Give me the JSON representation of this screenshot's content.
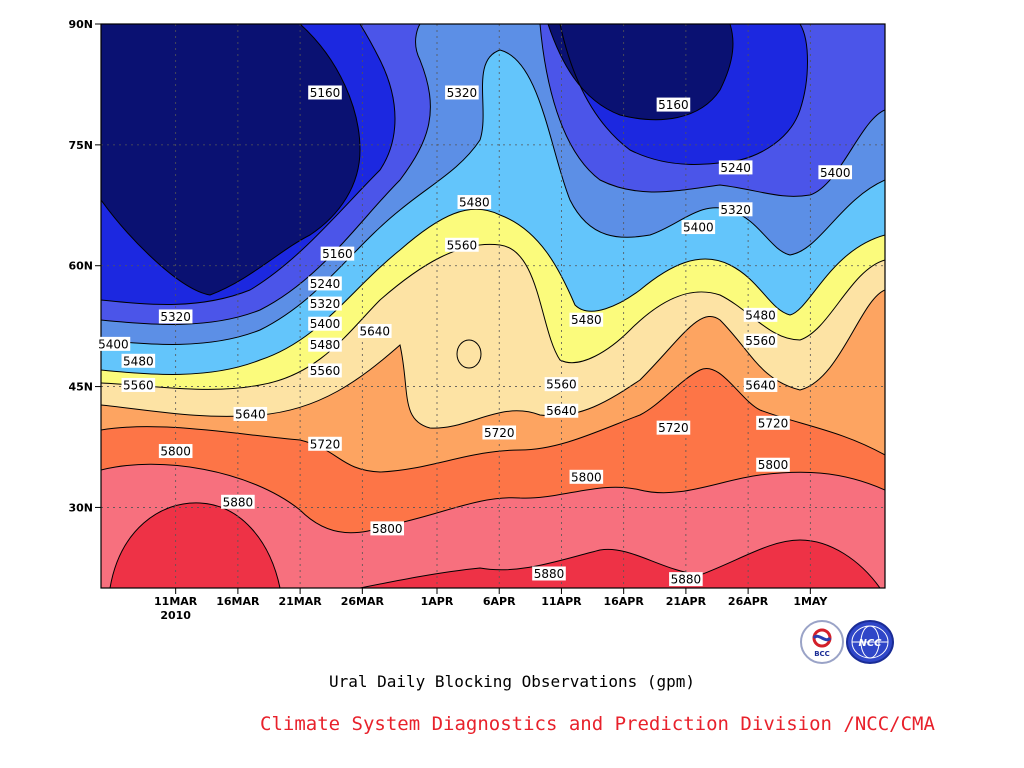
{
  "chart_data": {
    "type": "heatmap",
    "title": "Ural Daily Blocking Observations (gpm)",
    "credit": "Climate System Diagnostics and Prediction Division /NCC/CMA",
    "x_start_date": "2010-03-05",
    "x_end_date": "2010-05-07",
    "x_tick_labels": [
      "11MAR",
      "16MAR",
      "21MAR",
      "26MAR",
      "1APR",
      "6APR",
      "11APR",
      "16APR",
      "21APR",
      "26APR",
      "1MAY"
    ],
    "x_tick_dates": [
      "2010-03-11",
      "2010-03-16",
      "2010-03-21",
      "2010-03-26",
      "2010-04-01",
      "2010-04-06",
      "2010-04-11",
      "2010-04-16",
      "2010-04-21",
      "2010-04-26",
      "2010-05-01"
    ],
    "x_sublabel": "2010",
    "y_ticks": [
      30,
      45,
      60,
      75,
      90
    ],
    "y_tick_labels": [
      "30N",
      "45N",
      "60N",
      "75N",
      "90N"
    ],
    "ylim": [
      20,
      90
    ],
    "grid": true,
    "levels": [
      5160,
      5240,
      5320,
      5400,
      5480,
      5560,
      5640,
      5720,
      5800,
      5880
    ],
    "colors": [
      "#0a1172",
      "#1c28e0",
      "#4b55e9",
      "#5c8fe6",
      "#63c5fb",
      "#fbfb7c",
      "#fde3a4",
      "#fda461",
      "#fd7547",
      "#f7707e",
      "#ee3246"
    ],
    "contour_labels": [
      {
        "x": "2010-03-23",
        "y": 81.5,
        "value": "5160"
      },
      {
        "x": "2010-04-03",
        "y": 81.5,
        "value": "5320"
      },
      {
        "x": "2010-04-20",
        "y": 80.0,
        "value": "5160"
      },
      {
        "x": "2010-04-25",
        "y": 72.2,
        "value": "5240"
      },
      {
        "x": "2010-05-03",
        "y": 71.6,
        "value": "5400"
      },
      {
        "x": "2010-04-25",
        "y": 67.0,
        "value": "5320"
      },
      {
        "x": "2010-04-22",
        "y": 64.8,
        "value": "5400"
      },
      {
        "x": "2010-04-04",
        "y": 67.9,
        "value": "5480"
      },
      {
        "x": "2010-04-03",
        "y": 62.6,
        "value": "5560"
      },
      {
        "x": "2010-03-24",
        "y": 61.5,
        "value": "5160"
      },
      {
        "x": "2010-03-23",
        "y": 57.8,
        "value": "5240"
      },
      {
        "x": "2010-03-23",
        "y": 55.3,
        "value": "5320"
      },
      {
        "x": "2010-03-23",
        "y": 52.8,
        "value": "5400"
      },
      {
        "x": "2010-03-23",
        "y": 50.2,
        "value": "5480"
      },
      {
        "x": "2010-03-23",
        "y": 47.0,
        "value": "5560"
      },
      {
        "x": "2010-03-27",
        "y": 51.9,
        "value": "5640"
      },
      {
        "x": "2010-03-11",
        "y": 53.7,
        "value": "5320"
      },
      {
        "x": "2010-03-06",
        "y": 50.3,
        "value": "5400"
      },
      {
        "x": "2010-03-08",
        "y": 48.2,
        "value": "5480"
      },
      {
        "x": "2010-03-08",
        "y": 45.2,
        "value": "5560"
      },
      {
        "x": "2010-03-17",
        "y": 41.6,
        "value": "5640"
      },
      {
        "x": "2010-03-23",
        "y": 37.9,
        "value": "5720"
      },
      {
        "x": "2010-03-11",
        "y": 37.0,
        "value": "5800"
      },
      {
        "x": "2010-03-16",
        "y": 30.7,
        "value": "5880"
      },
      {
        "x": "2010-03-28",
        "y": 27.4,
        "value": "5800"
      },
      {
        "x": "2010-04-13",
        "y": 53.3,
        "value": "5480"
      },
      {
        "x": "2010-04-11",
        "y": 45.3,
        "value": "5560"
      },
      {
        "x": "2010-04-11",
        "y": 42.0,
        "value": "5640"
      },
      {
        "x": "2010-04-06",
        "y": 39.3,
        "value": "5720"
      },
      {
        "x": "2010-04-13",
        "y": 33.8,
        "value": "5800"
      },
      {
        "x": "2010-04-10",
        "y": 21.8,
        "value": "5880"
      },
      {
        "x": "2010-04-20",
        "y": 39.9,
        "value": "5720"
      },
      {
        "x": "2010-04-21",
        "y": 21.1,
        "value": "5880"
      },
      {
        "x": "2010-04-27",
        "y": 53.9,
        "value": "5480"
      },
      {
        "x": "2010-04-27",
        "y": 50.7,
        "value": "5560"
      },
      {
        "x": "2010-04-27",
        "y": 45.2,
        "value": "5640"
      },
      {
        "x": "2010-04-28",
        "y": 40.5,
        "value": "5720"
      },
      {
        "x": "2010-04-28",
        "y": 35.3,
        "value": "5800"
      }
    ]
  }
}
